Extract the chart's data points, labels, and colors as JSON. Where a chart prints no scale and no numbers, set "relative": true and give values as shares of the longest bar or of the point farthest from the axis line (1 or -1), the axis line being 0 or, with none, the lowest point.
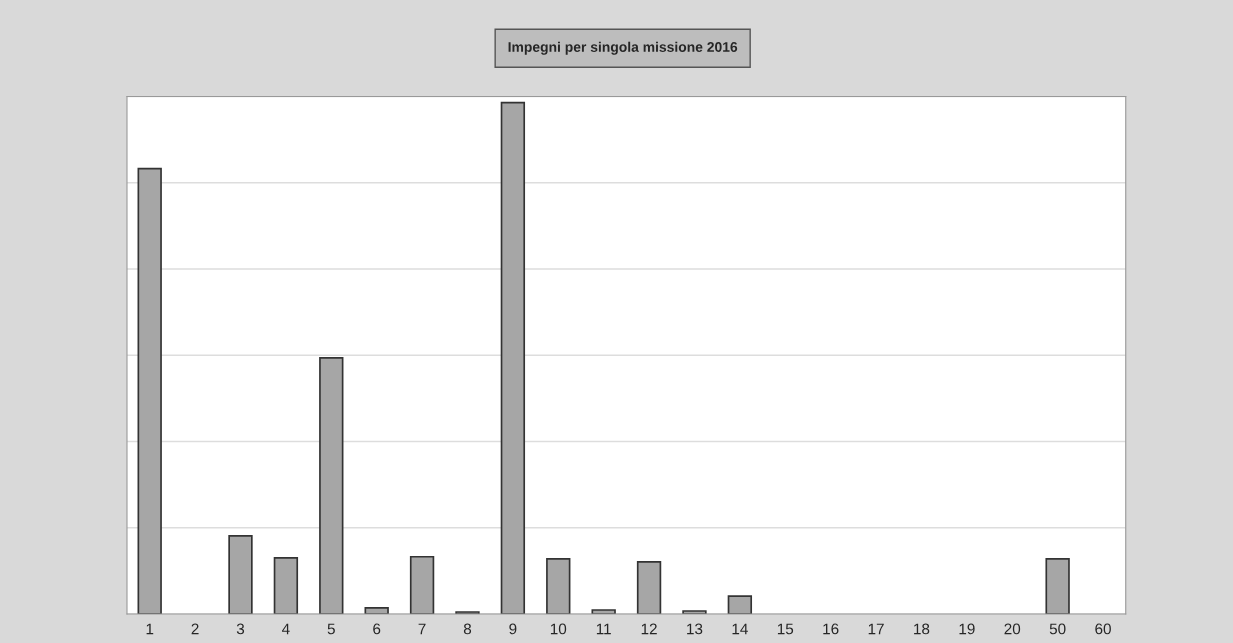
{
  "chart_data": {
    "type": "bar",
    "title": "Impegni per singola missione 2016",
    "relative": true,
    "grid": "y",
    "color": "#a6a6a6",
    "categories": [
      "1",
      "2",
      "3",
      "4",
      "5",
      "6",
      "7",
      "8",
      "9",
      "10",
      "11",
      "12",
      "13",
      "14",
      "15",
      "16",
      "17",
      "18",
      "19",
      "20",
      "50",
      "60"
    ],
    "values": [
      0.871,
      0,
      0.153,
      0.11,
      0.501,
      0.012,
      0.112,
      0.004,
      1,
      0.108,
      0.008,
      0.102,
      0.006,
      0.035,
      0,
      0,
      0,
      0,
      0,
      0,
      0.108,
      0
    ]
  }
}
